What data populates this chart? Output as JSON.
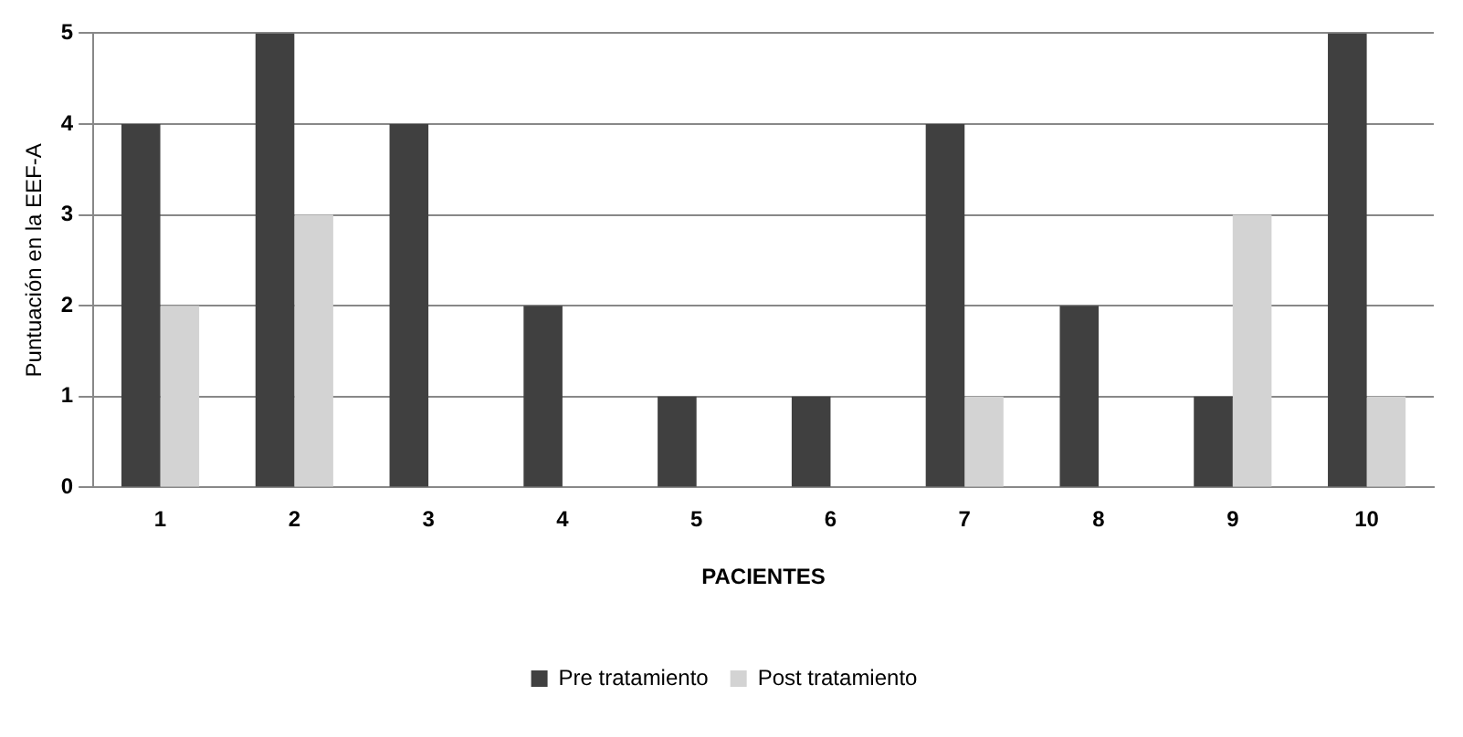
{
  "chart_data": {
    "type": "bar",
    "xlabel": "PACIENTES",
    "ylabel": "Puntuación en la EEF-A",
    "categories": [
      "1",
      "2",
      "3",
      "4",
      "5",
      "6",
      "7",
      "8",
      "9",
      "10"
    ],
    "series": [
      {
        "name": "Pre tratamiento",
        "color": "#404040",
        "values": [
          4,
          5,
          4,
          2,
          1,
          1,
          4,
          2,
          1,
          5
        ]
      },
      {
        "name": "Post tratamiento",
        "color": "#d3d3d3",
        "values": [
          2,
          3,
          0,
          0,
          0,
          0,
          1,
          0,
          3,
          1
        ]
      }
    ],
    "ylim": [
      0,
      5
    ],
    "yticks": [
      0,
      1,
      2,
      3,
      4,
      5
    ],
    "grid": "y",
    "legend": "bottom"
  }
}
